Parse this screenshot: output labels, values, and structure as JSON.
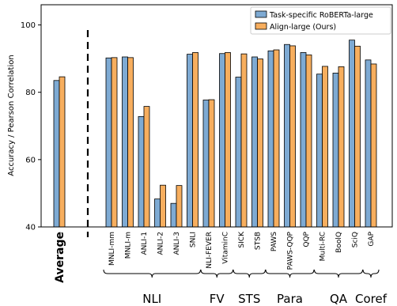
{
  "chart_data": {
    "type": "bar",
    "ylabel": "Accuracy / Pearson Correlation",
    "ylim": [
      40,
      106
    ],
    "yticks": [
      40,
      60,
      80,
      100
    ],
    "categories": [
      "Average",
      "MNLI-mm",
      "MNLI-m",
      "ANLI-1",
      "ANLI-2",
      "ANLI-3",
      "SNLI",
      "NLI-FEVER",
      "VitaminC",
      "SICK",
      "STSB",
      "PAWS",
      "PAWS-QQP",
      "QQP",
      "Multi-RC",
      "BoolQ",
      "SciQ",
      "GAP"
    ],
    "series": [
      {
        "name": "Task-specific RoBERTa-large",
        "color": "#7eaad3",
        "values": [
          83.5,
          90.2,
          90.5,
          72.8,
          48.3,
          47.0,
          91.3,
          77.7,
          91.5,
          84.5,
          90.5,
          92.3,
          94.2,
          91.8,
          85.4,
          85.7,
          95.5,
          89.6
        ]
      },
      {
        "name": "Align-large (Ours)",
        "color": "#f7ae5e",
        "values": [
          84.6,
          90.3,
          90.3,
          75.8,
          52.4,
          52.3,
          91.8,
          77.8,
          91.8,
          91.4,
          89.9,
          92.6,
          93.8,
          91.1,
          87.7,
          87.6,
          93.7,
          88.4
        ]
      }
    ],
    "groups": [
      {
        "label": "NLI",
        "start": "MNLI-mm",
        "end": "SNLI"
      },
      {
        "label": "FV",
        "start": "NLI-FEVER",
        "end": "VitaminC"
      },
      {
        "label": "STS",
        "start": "SICK",
        "end": "STSB"
      },
      {
        "label": "Para",
        "start": "PAWS",
        "end": "QQP"
      },
      {
        "label": "QA",
        "start": "Multi-RC",
        "end": "SciQ"
      },
      {
        "label": "Coref",
        "start": "GAP",
        "end": "GAP"
      }
    ],
    "legend_position": "top-right",
    "grid": false
  }
}
